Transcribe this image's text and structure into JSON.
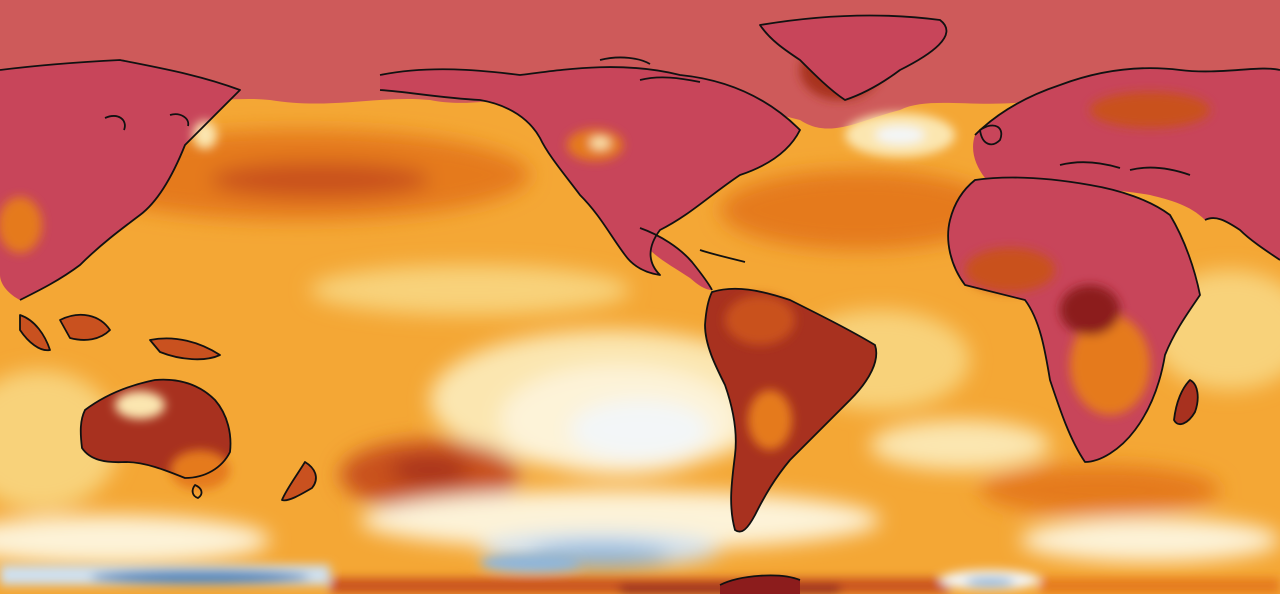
{
  "map": {
    "type": "global-temperature-anomaly-map",
    "projection": "equirectangular",
    "central_longitude": -180,
    "colors": {
      "ocean_base": "#f4a735",
      "warm_light": "#f8d27a",
      "warm_pale": "#fbe6b0",
      "cream": "#fdf3d8",
      "white": "#f3f6f8",
      "cool_light": "#cfe0ef",
      "cool_mid": "#8fb6da",
      "cool_deep": "#4f86bd",
      "orange_deep": "#e57a1d",
      "rust": "#c9511f",
      "red_brown": "#a8311f",
      "maroon": "#8c1c1c",
      "polar_red": "#ce5a5a",
      "land_red": "#c8455a",
      "coast": "#111111"
    },
    "icons": [
      "coastline-outline"
    ]
  }
}
